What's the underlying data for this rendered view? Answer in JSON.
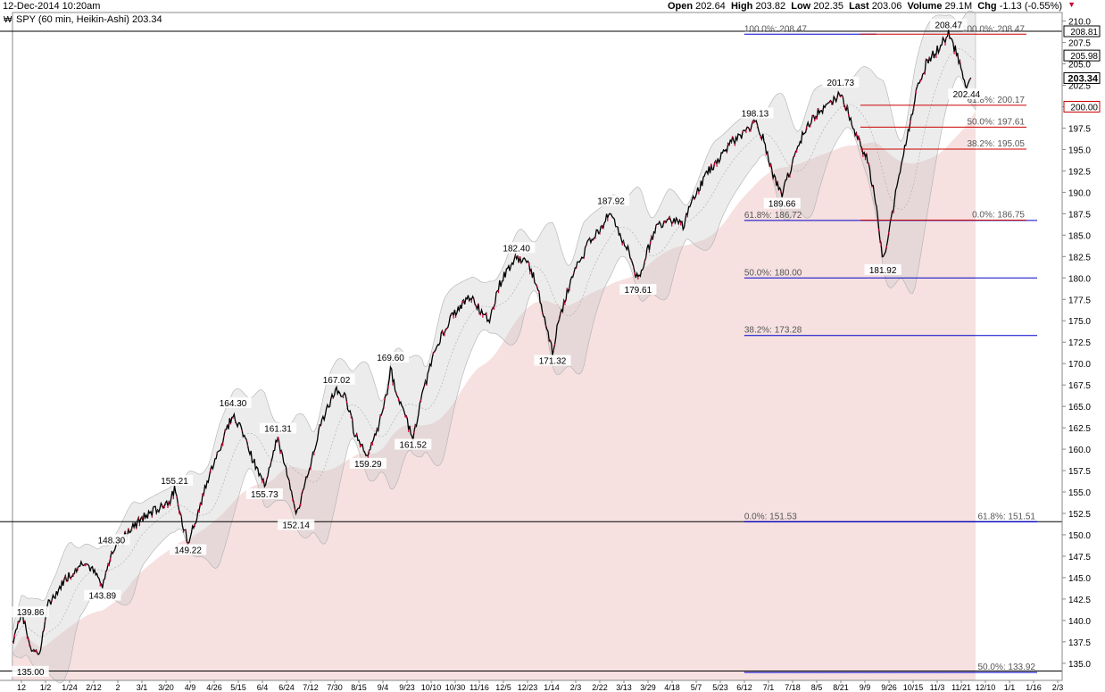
{
  "header": {
    "date": "12-Dec-2014 10:20am",
    "open_label": "Open",
    "open": "202.64",
    "high_label": "High",
    "high": "203.82",
    "low_label": "Low",
    "low": "202.35",
    "last_label": "Last",
    "last": "203.06",
    "volume_label": "Volume",
    "volume": "29.1M",
    "chg_label": "Chg",
    "chg": "-1.13 (-0.55%)",
    "dropdown_glyph": "▼"
  },
  "chart_data": {
    "type": "candlestick",
    "title": "SPY (60 min, Heikin-Ashi) 203.34",
    "ylim": [
      133,
      211
    ],
    "yticks": [
      135.0,
      137.5,
      140.0,
      142.5,
      145.0,
      147.5,
      150.0,
      152.5,
      155.0,
      157.5,
      160.0,
      162.5,
      165.0,
      167.5,
      170.0,
      172.5,
      175.0,
      177.5,
      180.0,
      182.5,
      185.0,
      187.5,
      190.0,
      192.5,
      195.0,
      197.5,
      200.0,
      202.5,
      205.0,
      207.5,
      210.0
    ],
    "xticks": [
      "12",
      "1/2",
      "1/24",
      "2/12",
      "2",
      "3/1",
      "3/20",
      "4/9",
      "4/26",
      "5/15",
      "6/4",
      "6/24",
      "7/12",
      "7/30",
      "8/15",
      "9/4",
      "9/23",
      "10/10",
      "10/30",
      "11/16",
      "12/5",
      "12/23",
      "1/14",
      "2/3",
      "2/22",
      "3/13",
      "3/29",
      "4/18",
      "5/7",
      "5/23",
      "6/12",
      "7/1",
      "7/18",
      "8/5",
      "8/21",
      "9/9",
      "9/26",
      "10/15",
      "11/3",
      "11/21",
      "12/10",
      "1/1",
      "1/16",
      "2/3"
    ],
    "price_path": [
      [
        0,
        137.5
      ],
      [
        2,
        141
      ],
      [
        4,
        137
      ],
      [
        6,
        136
      ],
      [
        8,
        142
      ],
      [
        12,
        145
      ],
      [
        16,
        147
      ],
      [
        19,
        145
      ],
      [
        20,
        143.9
      ],
      [
        22,
        148
      ],
      [
        25,
        150
      ],
      [
        29,
        152
      ],
      [
        32,
        153
      ],
      [
        35,
        154
      ],
      [
        36,
        155.2
      ],
      [
        37,
        153
      ],
      [
        38,
        151
      ],
      [
        39,
        149.2
      ],
      [
        41,
        152
      ],
      [
        43,
        156
      ],
      [
        46,
        160
      ],
      [
        49,
        164.3
      ],
      [
        51,
        162
      ],
      [
        54,
        158
      ],
      [
        56,
        155.7
      ],
      [
        58,
        160
      ],
      [
        59,
        161.3
      ],
      [
        61,
        157
      ],
      [
        63,
        152.1
      ],
      [
        65,
        156
      ],
      [
        68,
        162
      ],
      [
        70,
        165
      ],
      [
        72,
        167
      ],
      [
        74,
        166
      ],
      [
        76,
        162
      ],
      [
        77,
        161
      ],
      [
        79,
        159.3
      ],
      [
        81,
        162
      ],
      [
        83,
        166
      ],
      [
        84,
        169.6
      ],
      [
        85,
        167
      ],
      [
        87,
        164
      ],
      [
        89,
        161.5
      ],
      [
        91,
        166
      ],
      [
        93,
        170
      ],
      [
        95,
        173
      ],
      [
        97,
        175
      ],
      [
        100,
        177
      ],
      [
        102,
        178
      ],
      [
        104,
        176
      ],
      [
        106,
        175
      ],
      [
        108,
        179
      ],
      [
        110,
        181
      ],
      [
        112,
        182.4
      ],
      [
        114,
        182
      ],
      [
        116,
        180
      ],
      [
        118,
        176
      ],
      [
        120,
        171.3
      ],
      [
        121,
        174
      ],
      [
        123,
        178
      ],
      [
        125,
        181
      ],
      [
        128,
        184
      ],
      [
        131,
        186
      ],
      [
        133,
        187.9
      ],
      [
        135,
        185
      ],
      [
        137,
        183
      ],
      [
        139,
        179.6
      ],
      [
        141,
        183
      ],
      [
        143,
        186
      ],
      [
        146,
        187
      ],
      [
        149,
        186
      ],
      [
        151,
        189
      ],
      [
        154,
        192
      ],
      [
        157,
        194
      ],
      [
        160,
        196
      ],
      [
        163,
        197
      ],
      [
        165,
        198.1
      ],
      [
        167,
        196
      ],
      [
        169,
        192
      ],
      [
        171,
        189.7
      ],
      [
        173,
        193
      ],
      [
        175,
        196
      ],
      [
        178,
        199
      ],
      [
        181,
        200
      ],
      [
        184,
        201.7
      ],
      [
        186,
        199
      ],
      [
        188,
        196
      ],
      [
        190,
        194
      ],
      [
        191,
        191
      ],
      [
        192,
        188
      ],
      [
        193,
        184
      ],
      [
        193.4,
        181.9
      ],
      [
        195,
        186
      ],
      [
        197,
        192
      ],
      [
        199,
        197
      ],
      [
        201,
        202
      ],
      [
        203,
        205
      ],
      [
        206,
        207
      ],
      [
        208,
        208.47
      ],
      [
        210,
        206
      ],
      [
        211,
        204
      ],
      [
        212,
        202.4
      ],
      [
        213,
        203.06
      ]
    ],
    "peak_labels": [
      {
        "x": 4,
        "y": 139.86,
        "label": "139.86",
        "pos": "above"
      },
      {
        "x": 4,
        "y": 135.0,
        "label": "135.00",
        "pos": "below"
      },
      {
        "x": 22,
        "y": 148.3,
        "label": "148.30",
        "pos": "above"
      },
      {
        "x": 20,
        "y": 143.89,
        "label": "143.89",
        "pos": "below"
      },
      {
        "x": 36,
        "y": 155.21,
        "label": "155.21",
        "pos": "above"
      },
      {
        "x": 39,
        "y": 149.22,
        "label": "149.22",
        "pos": "below"
      },
      {
        "x": 49,
        "y": 164.3,
        "label": "164.30",
        "pos": "above"
      },
      {
        "x": 59,
        "y": 161.31,
        "label": "161.31",
        "pos": "above"
      },
      {
        "x": 56,
        "y": 155.73,
        "label": "155.73",
        "pos": "below"
      },
      {
        "x": 63,
        "y": 152.14,
        "label": "152.14",
        "pos": "below"
      },
      {
        "x": 72,
        "y": 167.02,
        "label": "167.02",
        "pos": "above"
      },
      {
        "x": 79,
        "y": 159.29,
        "label": "159.29",
        "pos": "below"
      },
      {
        "x": 84,
        "y": 169.6,
        "label": "169.60",
        "pos": "above"
      },
      {
        "x": 89,
        "y": 161.52,
        "label": "161.52",
        "pos": "below"
      },
      {
        "x": 112,
        "y": 182.4,
        "label": "182.40",
        "pos": "above"
      },
      {
        "x": 120,
        "y": 171.32,
        "label": "171.32",
        "pos": "below"
      },
      {
        "x": 133,
        "y": 187.92,
        "label": "187.92",
        "pos": "above"
      },
      {
        "x": 139,
        "y": 179.61,
        "label": "179.61",
        "pos": "below"
      },
      {
        "x": 165,
        "y": 198.13,
        "label": "198.13",
        "pos": "above"
      },
      {
        "x": 171,
        "y": 189.66,
        "label": "189.66",
        "pos": "below"
      },
      {
        "x": 184,
        "y": 201.73,
        "label": "201.73",
        "pos": "above"
      },
      {
        "x": 193.4,
        "y": 181.92,
        "label": "181.92",
        "pos": "below"
      },
      {
        "x": 208,
        "y": 208.47,
        "label": "208.47",
        "pos": "above"
      },
      {
        "x": 212,
        "y": 202.44,
        "label": "202.44",
        "pos": "below"
      }
    ],
    "fib_blue": [
      {
        "y": 208.47,
        "label": "100.0%: 208.47"
      },
      {
        "y": 186.72,
        "label": "61.8%: 186.72"
      },
      {
        "y": 180.0,
        "label": "50.0%: 180.00"
      },
      {
        "y": 173.28,
        "label": "38.2%: 173.28"
      },
      {
        "y": 151.53,
        "label": "0.0%: 151.53"
      }
    ],
    "fib_red": [
      {
        "y": 208.47,
        "label": "100.0%: 208.47"
      },
      {
        "y": 200.17,
        "label": "61.8%: 200.17"
      },
      {
        "y": 197.61,
        "label": "50.0%: 197.61"
      },
      {
        "y": 195.05,
        "label": "38.2%: 195.05"
      },
      {
        "y": 186.75,
        "label": "0.0%: 186.75"
      }
    ],
    "fib_blue_right": [
      {
        "y": 151.51,
        "label": "61.8%: 151.51"
      },
      {
        "y": 133.92,
        "label": "50.0%: 133.92"
      }
    ],
    "price_boxes": [
      {
        "y": 208.81,
        "label": "208.81",
        "style": "plain"
      },
      {
        "y": 205.98,
        "label": "205.98",
        "style": "plain"
      },
      {
        "y": 203.34,
        "label": "203.34",
        "style": "bold"
      },
      {
        "y": 200.0,
        "label": "200.00",
        "style": "red"
      }
    ],
    "hlines": [
      208.81,
      151.53,
      134.1
    ],
    "colors": {
      "candle": "#000000",
      "candle_down": "#cc0033",
      "band": "#c8c8c8",
      "ma_fill": "#f3d6d6",
      "blue": "#0000cc",
      "red": "#cc0000"
    }
  }
}
